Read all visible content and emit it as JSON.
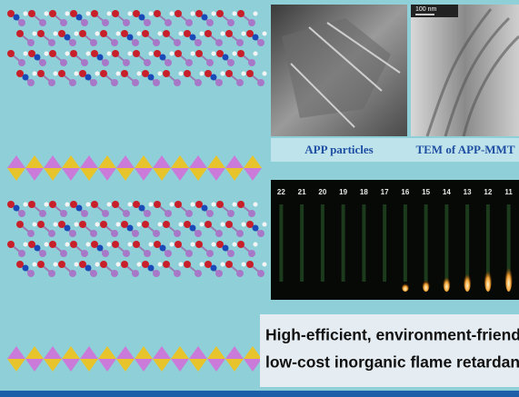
{
  "panels": {
    "sem": {
      "caption": "APP particles"
    },
    "tem": {
      "caption": "TEM of APP-MMT",
      "scale_bar": "100 nm"
    },
    "flame": {
      "labels": [
        "22",
        "21",
        "20",
        "19",
        "18",
        "17",
        "16",
        "15",
        "14",
        "13",
        "12",
        "11"
      ]
    }
  },
  "claim": {
    "lines": [
      "High-efficient, environment-friendly,",
      "low-cost inorganic flame retardant"
    ]
  }
}
